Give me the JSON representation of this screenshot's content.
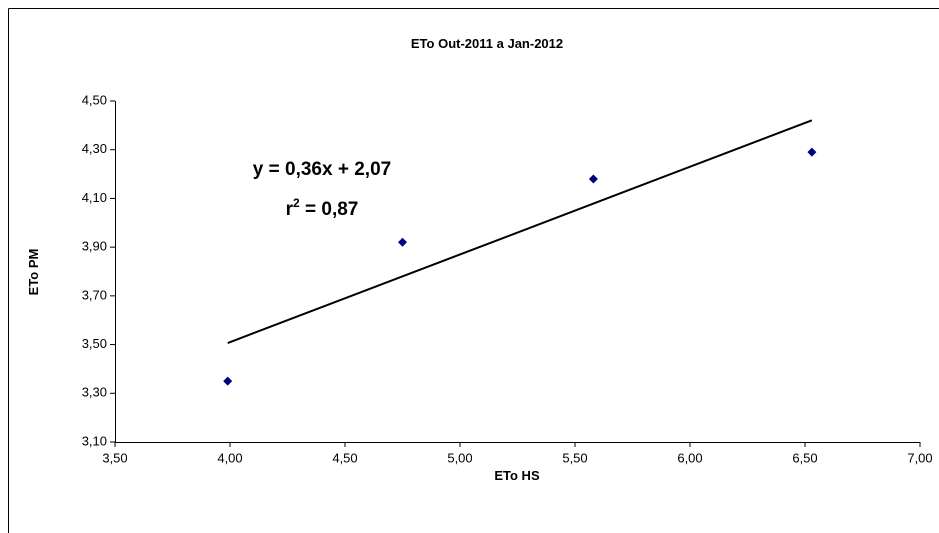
{
  "chart_data": {
    "type": "scatter",
    "title": "ETo Out-2011 a Jan-2012",
    "x_label": "ETo HS",
    "y_label": "ETo PM",
    "x": [
      3.99,
      4.75,
      5.58,
      6.53
    ],
    "values": [
      3.35,
      3.92,
      4.18,
      4.29
    ],
    "color": "#000080",
    "xlim": [
      3.5,
      7.0
    ],
    "xticks": [
      {
        "value": 3.5,
        "label": "3,50"
      },
      {
        "value": 4.0,
        "label": "4,00"
      },
      {
        "value": 4.5,
        "label": "4,50"
      },
      {
        "value": 5.0,
        "label": "5,00"
      },
      {
        "value": 5.5,
        "label": "5,50"
      },
      {
        "value": 6.0,
        "label": "6,00"
      },
      {
        "value": 6.5,
        "label": "6,50"
      },
      {
        "value": 7.0,
        "label": "7,00"
      }
    ],
    "ylim": [
      3.1,
      4.5
    ],
    "yticks": [
      {
        "value": 3.1,
        "label": "3,10"
      },
      {
        "value": 3.3,
        "label": "3,30"
      },
      {
        "value": 3.5,
        "label": "3,50"
      },
      {
        "value": 3.7,
        "label": "3,70"
      },
      {
        "value": 3.9,
        "label": "3,90"
      },
      {
        "value": 4.1,
        "label": "4,10"
      },
      {
        "value": 4.3,
        "label": "4,30"
      },
      {
        "value": 4.5,
        "label": "4,50"
      }
    ],
    "grid": false,
    "trendline": {
      "slope": 0.36,
      "intercept": 2.07,
      "color": "#000000",
      "equation": "y = 0,36x + 2,07",
      "r2_label": {
        "base": "r",
        "exponent": "2",
        "text": " = 0,87"
      }
    }
  }
}
